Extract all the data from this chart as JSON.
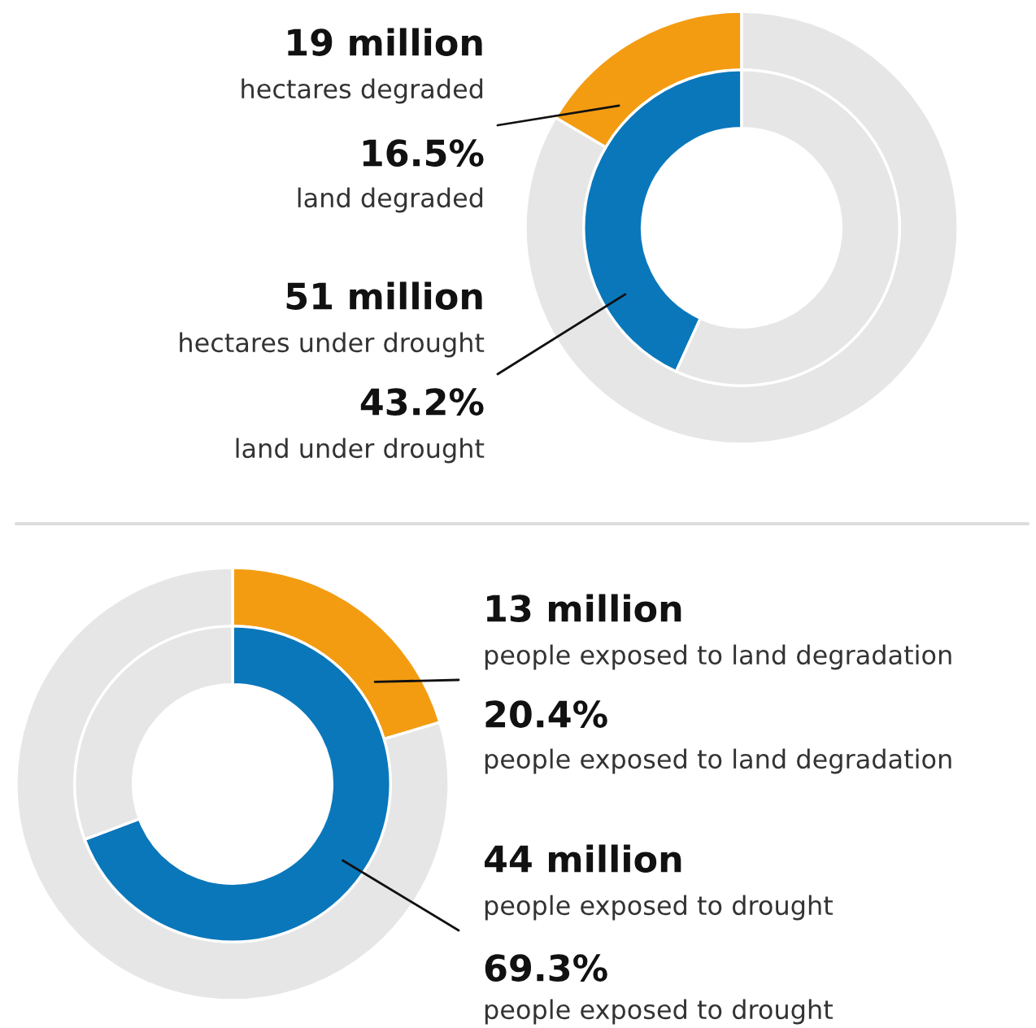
{
  "chart_data": [
    {
      "type": "donut",
      "categories": [
        null,
        null
      ],
      "series": [
        {
          "values": [
            16.5,
            83.5
          ],
          "colors": [
            "#f39c12",
            "#e6e6e6"
          ]
        },
        {
          "values": [
            43.2,
            56.8
          ],
          "colors": [
            "#0a77bb",
            "#e6e6e6"
          ]
        }
      ],
      "annotations": [
        "19 million",
        "hectares degraded",
        "16.5%",
        "land degraded",
        "51 million",
        "hectares under drought",
        "43.2%",
        "land under drought"
      ]
    },
    {
      "type": "donut",
      "categories": [
        null,
        null
      ],
      "series": [
        {
          "values": [
            20.4,
            79.6
          ],
          "colors": [
            "#f39c12",
            "#e6e6e6"
          ]
        },
        {
          "values": [
            69.3,
            30.7
          ],
          "colors": [
            "#0a77bb",
            "#e6e6e6"
          ]
        }
      ],
      "annotations": [
        "13 million",
        "people exposed to land degradation",
        "20.4%",
        "people exposed to land degradation",
        "44 million",
        "people exposed to drought",
        "69.3%",
        "people exposed to drought"
      ]
    }
  ]
}
